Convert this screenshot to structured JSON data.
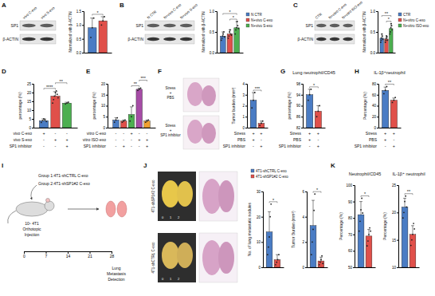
{
  "panel_labels": [
    "A",
    "B",
    "C",
    "D",
    "E",
    "F",
    "G",
    "H",
    "I",
    "J",
    "K"
  ],
  "blots": [
    {
      "lanes": [
        "vivo C-exo",
        "vivo S-exo"
      ],
      "bands": [
        "SP1",
        "β-ACTIN"
      ]
    },
    {
      "lanes": [
        "N CTR",
        "N+vivo C-exo",
        "N+vivo S-exo"
      ],
      "bands": [
        "SP1",
        "β-ACTIN"
      ]
    },
    {
      "lanes": [
        "CTR",
        "N+vitro C-exo",
        "N+vitro ISO-exo"
      ],
      "bands": [
        "SP1",
        "β-ACTIN"
      ]
    }
  ],
  "histology_F": {
    "labels": [
      [
        "Stress",
        "+",
        "PBS"
      ],
      [
        "Stress",
        "+",
        "SP1 inhibitor"
      ]
    ]
  },
  "diagram_I": {
    "groups": [
      "Group 1:4T1-shCTRL C-exo",
      "Group 2:4T1-shSP1#2 C-exo"
    ],
    "injection": [
      "10⁵ 4T1",
      "Orthotopic",
      "Injection"
    ],
    "timeline": [
      0,
      7,
      14,
      21,
      28
    ],
    "endpoint": [
      "Lung",
      "Metastasis",
      "Detection"
    ]
  },
  "photos_J": {
    "labels": [
      "4T1-shSP1#2 C-exo",
      "4T1-shCTRL C-exo"
    ],
    "ruler": [
      0,
      1,
      2
    ]
  },
  "chart_data": [
    {
      "type": "bar",
      "ylabel": "Normalized with β-ACTIN",
      "ylim": [
        0,
        1.5
      ],
      "yticks": [
        {
          "value": 0,
          "label": "0.0"
        },
        0.5,
        {
          "value": 1,
          "label": "1.0"
        },
        1.5
      ],
      "categories": [
        null
      ],
      "series": [
        {
          "color": "#4a7cc4",
          "values": [
            0.9
          ],
          "errors": [
            0.35
          ],
          "points": [
            [
              0.55,
              0.9,
              1.25
            ]
          ]
        },
        {
          "color": "#e0504a",
          "values": [
            1.15
          ],
          "errors": [
            0.15
          ],
          "points": [
            [
              1.0,
              1.15,
              1.3
            ]
          ]
        }
      ],
      "annotations": [
        {
          "text": "*",
          "from": 0,
          "to": 1
        }
      ]
    },
    {
      "type": "bar",
      "ylabel": "Normalized with β-ACTIN",
      "ylim": [
        0,
        1
      ],
      "yticks": [
        {
          "value": 0,
          "label": "0.0"
        },
        0.5,
        {
          "value": 1,
          "label": "1.0"
        }
      ],
      "categories": [
        null
      ],
      "legend": "right",
      "series": [
        {
          "name": "N CTR",
          "color": "#4a7cc4",
          "values": [
            0.4
          ],
          "errors": [
            0.1
          ],
          "points": [
            [
              0.3,
              0.35,
              0.4,
              0.45,
              0.5,
              0.38
            ]
          ]
        },
        {
          "name": "N+vivo C-exo",
          "color": "#e0504a",
          "values": [
            0.45
          ],
          "errors": [
            0.1
          ],
          "points": [
            [
              0.35,
              0.4,
              0.5,
              0.55,
              0.45,
              0.42
            ]
          ]
        },
        {
          "name": "N+vivo S-exo",
          "color": "#4caf50",
          "values": [
            0.6
          ],
          "errors": [
            0.15
          ],
          "points": [
            [
              0.45,
              0.55,
              0.6,
              0.75,
              0.65,
              0.58
            ]
          ]
        }
      ],
      "annotations": [
        {
          "text": "*",
          "from": 1,
          "to": 2
        },
        {
          "text": "*",
          "from": 0,
          "to": 2
        }
      ]
    },
    {
      "type": "bar",
      "ylabel": "Normalized with β-ACTIN",
      "ylim": [
        0,
        1
      ],
      "yticks": [
        {
          "value": 0,
          "label": "0.0"
        },
        0.5,
        {
          "value": 1,
          "label": "1.0"
        }
      ],
      "categories": [
        null
      ],
      "legend": "right",
      "series": [
        {
          "name": "CTR",
          "color": "#4a7cc4",
          "values": [
            0.35
          ],
          "errors": [
            0.1
          ],
          "points": [
            [
              0.25,
              0.3,
              0.35,
              0.45,
              0.4,
              0.32
            ]
          ]
        },
        {
          "name": "N+vitro C-exo",
          "color": "#e0504a",
          "values": [
            0.33
          ],
          "errors": [
            0.08
          ],
          "points": [
            [
              0.25,
              0.3,
              0.35,
              0.4,
              0.38,
              0.3
            ]
          ]
        },
        {
          "name": "N+vitro ISO-exo",
          "color": "#4caf50",
          "values": [
            0.58
          ],
          "errors": [
            0.12
          ],
          "points": [
            [
              0.45,
              0.5,
              0.6,
              0.7,
              0.65,
              0.55
            ]
          ]
        }
      ],
      "annotations": [
        {
          "text": "*",
          "from": 1,
          "to": 2
        },
        {
          "text": "**",
          "from": 0,
          "to": 2
        }
      ]
    },
    {
      "type": "bar",
      "ylabel": "percentage (%)",
      "ylim": [
        0,
        25
      ],
      "yticks": [
        0,
        5,
        10,
        15,
        20,
        25
      ],
      "categories": [
        null
      ],
      "series": [
        {
          "color": "#4a7cc4",
          "values": [
            4
          ],
          "errors": [
            1
          ],
          "points": [
            [
              3,
              4,
              5,
              4.5,
              3.5
            ]
          ]
        },
        {
          "color": "#e0504a",
          "values": [
            18
          ],
          "errors": [
            2.5
          ],
          "points": [
            [
              14,
              16,
              18,
              20,
              21,
              19,
              17
            ]
          ]
        },
        {
          "color": "#4caf50",
          "values": [
            14
          ],
          "errors": [
            0.5
          ],
          "points": [
            [
              13.5,
              14,
              14.5
            ]
          ]
        }
      ],
      "annotations": [
        {
          "text": "****",
          "from": 0,
          "to": 1
        },
        {
          "text": "**",
          "from": 1,
          "to": 2
        }
      ],
      "conditions": [
        {
          "label": "vivo C-exo",
          "signs": [
            "+",
            "-",
            "-"
          ]
        },
        {
          "label": "vivo S-exo",
          "signs": [
            "-",
            "+",
            "+"
          ]
        },
        {
          "label": "SP1 inhibitor",
          "signs": [
            "-",
            "-",
            "+"
          ]
        }
      ]
    },
    {
      "type": "bar",
      "ylabel": "percentage (%)",
      "ylim": [
        0,
        20
      ],
      "yticks": [
        0,
        5,
        10,
        15,
        20
      ],
      "categories": [
        null
      ],
      "series": [
        {
          "color": "#4a7cc4",
          "values": [
            3.5
          ],
          "errors": [
            1
          ],
          "points": [
            [
              2.5,
              3.5,
              4.5
            ]
          ]
        },
        {
          "color": "#e0504a",
          "values": [
            3
          ],
          "errors": [
            0.5
          ],
          "points": [
            [
              2.5,
              3,
              3.5
            ]
          ]
        },
        {
          "color": "#4caf50",
          "values": [
            6
          ],
          "errors": [
            3.5
          ],
          "points": [
            [
              3,
              5,
              10
            ]
          ]
        },
        {
          "color": "#a64ca6",
          "values": [
            17.5
          ],
          "errors": [
            0.5
          ],
          "points": [
            [
              17,
              17.5,
              18
            ]
          ]
        },
        {
          "color": "#f0a030",
          "values": [
            3
          ],
          "errors": [
            0.5
          ],
          "points": [
            [
              2.5,
              3,
              3.5
            ]
          ]
        }
      ],
      "annotations": [
        {
          "text": "**",
          "from": 2,
          "to": 3
        },
        {
          "text": "***",
          "from": 3,
          "to": 4
        }
      ],
      "conditions": [
        {
          "label": "vitro C-exo",
          "signs": [
            "-",
            "-",
            "+",
            "-",
            "-"
          ]
        },
        {
          "label": "vitro ISO-exo",
          "signs": [
            "-",
            "-",
            "-",
            "+",
            "+"
          ]
        },
        {
          "label": "SP1 inhibitor",
          "signs": [
            "-",
            "+",
            "-",
            "-",
            "+"
          ]
        }
      ]
    },
    {
      "type": "bar",
      "ylabel": "Tumor burden (mm²)",
      "ylim": [
        0,
        4
      ],
      "yticks": [
        0,
        1,
        2,
        3,
        4
      ],
      "categories": [
        null
      ],
      "series": [
        {
          "color": "#4a7cc4",
          "values": [
            2.5
          ],
          "errors": [
            0.7
          ],
          "points": [
            [
              1.8,
              2.5,
              3.2
            ]
          ]
        },
        {
          "color": "#e0504a",
          "values": [
            0.4
          ],
          "errors": [
            0.2
          ],
          "points": [
            [
              0.2,
              0.4,
              0.6
            ]
          ]
        }
      ],
      "annotations": [
        {
          "text": "***",
          "from": 0,
          "to": 1
        }
      ],
      "conditions": [
        {
          "label": "Stress",
          "signs": [
            "+",
            "+"
          ]
        },
        {
          "label": "PBS",
          "signs": [
            "+",
            "-"
          ]
        },
        {
          "label": "SP1 inhibitor",
          "signs": [
            "-",
            "+"
          ]
        }
      ]
    },
    {
      "type": "bar",
      "title": "Lung neutrophil/CD45",
      "ylabel": "percentage (%)",
      "ylim": [
        82,
        98
      ],
      "yticks": [
        82,
        86,
        90,
        94,
        98
      ],
      "categories": [
        null
      ],
      "series": [
        {
          "color": "#4a7cc4",
          "values": [
            94
          ],
          "errors": [
            2
          ],
          "points": [
            [
              92,
              94,
              96
            ]
          ]
        },
        {
          "color": "#e0504a",
          "values": [
            88
          ],
          "errors": [
            2
          ],
          "points": [
            [
              86,
              88,
              90
            ]
          ]
        }
      ],
      "annotations": [
        {
          "text": "*",
          "from": 0,
          "to": 1
        }
      ],
      "conditions": [
        {
          "label": "Stress",
          "signs": [
            "+",
            "+"
          ]
        },
        {
          "label": "PBS",
          "signs": [
            "+",
            "-"
          ]
        },
        {
          "label": "SP1 inhibitor",
          "signs": [
            "-",
            "+"
          ]
        }
      ]
    },
    {
      "type": "bar",
      "title": "IL-1β⁺neutrophil",
      "ylabel": "Percentage (%)",
      "ylim": [
        0,
        80
      ],
      "yticks": [
        0,
        20,
        40,
        60,
        80
      ],
      "categories": [
        null
      ],
      "series": [
        {
          "color": "#4a7cc4",
          "values": [
            68
          ],
          "errors": [
            6
          ],
          "points": [
            [
              62,
              68,
              75
            ]
          ]
        },
        {
          "color": "#e0504a",
          "values": [
            50
          ],
          "errors": [
            4
          ],
          "points": [
            [
              46,
              50,
              55
            ]
          ]
        }
      ],
      "annotations": [
        {
          "text": "**",
          "from": 0,
          "to": 1
        }
      ],
      "conditions": [
        {
          "label": "Stress",
          "signs": [
            "+",
            "+"
          ]
        },
        {
          "label": "PBS",
          "signs": [
            "+",
            "-"
          ]
        },
        {
          "label": "SP1 inhibitor",
          "signs": [
            "-",
            "+"
          ]
        }
      ]
    },
    {
      "type": "bar",
      "ylabel": "No. of lung metastatic nodules",
      "ylim": [
        0,
        30
      ],
      "yticks": [
        0,
        10,
        20,
        30
      ],
      "categories": [
        null
      ],
      "legend": "top",
      "series": [
        {
          "name": "4T1-shCTRL C-exo",
          "color": "#4a7cc4",
          "values": [
            14
          ],
          "errors": [
            8
          ],
          "points": [
            [
              5,
              8,
              12,
              20,
              25
            ]
          ]
        },
        {
          "name": "4T1-shSP1#2 C-exo",
          "color": "#e0504a",
          "values": [
            3
          ],
          "errors": [
            2
          ],
          "points": [
            [
              1,
              2,
              3,
              5
            ]
          ]
        }
      ],
      "annotations": [
        {
          "text": "*",
          "from": 0,
          "to": 1
        }
      ]
    },
    {
      "type": "bar",
      "ylabel": "Tumor Burden (mm²)",
      "ylim": [
        0,
        6
      ],
      "yticks": [
        0,
        2,
        4,
        6
      ],
      "categories": [
        null
      ],
      "series": [
        {
          "color": "#4a7cc4",
          "values": [
            3.3
          ],
          "errors": [
            2
          ],
          "points": [
            [
              1,
              2,
              3,
              4.5,
              5.8
            ]
          ]
        },
        {
          "color": "#e0504a",
          "values": [
            0.5
          ],
          "errors": [
            0.3
          ],
          "points": [
            [
              0.2,
              0.4,
              0.6,
              0.9,
              0.3
            ]
          ]
        }
      ],
      "annotations": [
        {
          "text": "*",
          "from": 0,
          "to": 1
        }
      ]
    },
    {
      "type": "bar",
      "title": "Neutrophil/CD45",
      "ylabel": "Percentage (%)",
      "ylim": [
        50,
        100
      ],
      "yticks": [
        50,
        60,
        70,
        80,
        90,
        100
      ],
      "categories": [
        null
      ],
      "series": [
        {
          "color": "#4a7cc4",
          "values": [
            82
          ],
          "errors": [
            8
          ],
          "points": [
            [
              72,
              78,
              85,
              92,
              83
            ]
          ]
        },
        {
          "color": "#e0504a",
          "values": [
            69
          ],
          "errors": [
            4
          ],
          "points": [
            [
              63,
              66,
              70,
              74,
              72
            ]
          ]
        }
      ],
      "annotations": [
        {
          "text": "*",
          "from": 0,
          "to": 1
        }
      ]
    },
    {
      "type": "bar",
      "title": "IL-1β⁺ neutrophil",
      "ylabel": "Percentage (%)",
      "ylim": [
        10,
        25
      ],
      "yticks": [
        10,
        15,
        20,
        25
      ],
      "categories": [
        null
      ],
      "series": [
        {
          "color": "#4a7cc4",
          "values": [
            21
          ],
          "errors": [
            1.6
          ],
          "points": [
            [
              19,
              20,
              22,
              23,
              21
            ]
          ]
        },
        {
          "color": "#e0504a",
          "values": [
            16
          ],
          "errors": [
            1.6
          ],
          "points": [
            [
              14,
              15,
              16,
              18,
              17
            ]
          ]
        }
      ],
      "annotations": [
        {
          "text": "**",
          "from": 0,
          "to": 1
        }
      ]
    }
  ]
}
